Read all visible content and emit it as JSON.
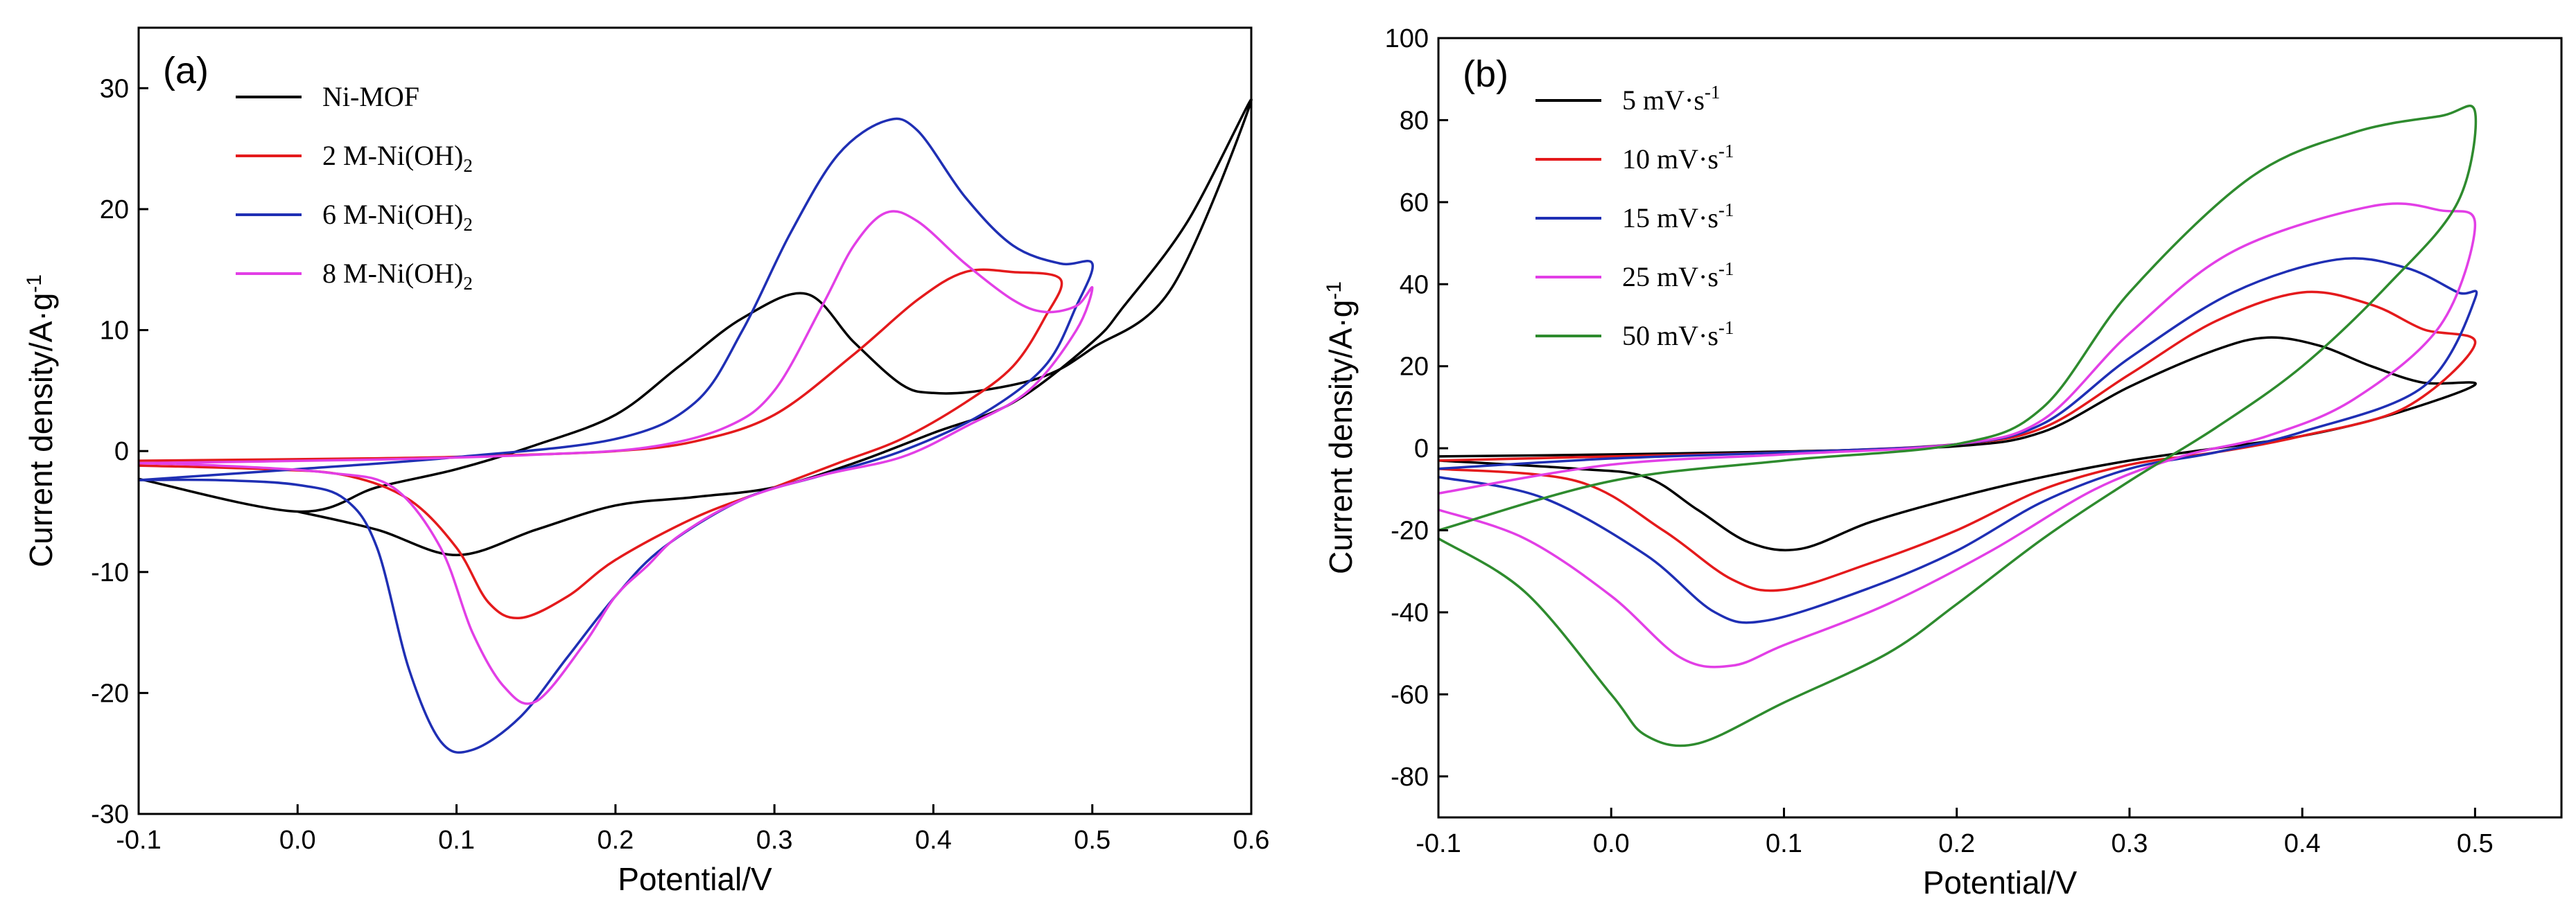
{
  "chart_data": [
    {
      "type": "line",
      "panel_label": "(a)",
      "xlabel": "Potential/V",
      "ylabel": "Current density/A·g",
      "ylabel_superscript": "-1",
      "xlim": [
        -0.1,
        0.6
      ],
      "ylim": [
        -30,
        35
      ],
      "xticks": [
        -0.1,
        0.0,
        0.1,
        0.2,
        0.3,
        0.4,
        0.5,
        0.6
      ],
      "xtick_labels": [
        "-0.1",
        "0.0",
        "0.1",
        "0.2",
        "0.3",
        "0.4",
        "0.5",
        "0.6"
      ],
      "yticks": [
        -30,
        -20,
        -10,
        0,
        10,
        20,
        30
      ],
      "ytick_labels": [
        "-30",
        "-20",
        "-10",
        "0",
        "10",
        "20",
        "30"
      ],
      "legend_position": "top-left",
      "series": [
        {
          "name": "Ni-MOF",
          "label_base": "Ni-MOF",
          "label_sup": "",
          "color": "#000000",
          "points": [
            [
              -0.1,
              -2.3
            ],
            [
              0.0,
              -5.0
            ],
            [
              0.05,
              -3.0
            ],
            [
              0.1,
              -1.5
            ],
            [
              0.15,
              0.5
            ],
            [
              0.2,
              3.0
            ],
            [
              0.24,
              7.0
            ],
            [
              0.28,
              11.0
            ],
            [
              0.32,
              13.0
            ],
            [
              0.35,
              9.0
            ],
            [
              0.38,
              5.5
            ],
            [
              0.4,
              4.8
            ],
            [
              0.43,
              5.0
            ],
            [
              0.47,
              6.2
            ],
            [
              0.5,
              8.5
            ],
            [
              0.55,
              13.5
            ],
            [
              0.6,
              29.0
            ],
            [
              0.56,
              19.0
            ],
            [
              0.52,
              12.0
            ],
            [
              0.5,
              9.0
            ],
            [
              0.45,
              4.0
            ],
            [
              0.4,
              1.5
            ],
            [
              0.35,
              -1.0
            ],
            [
              0.3,
              -3.0
            ],
            [
              0.25,
              -3.8
            ],
            [
              0.2,
              -4.5
            ],
            [
              0.15,
              -6.5
            ],
            [
              0.1,
              -8.6
            ],
            [
              0.05,
              -6.5
            ],
            [
              0.0,
              -5.0
            ]
          ]
        },
        {
          "name": "2 M-Ni(OH)2",
          "label_base": "2 M-Ni(OH)",
          "label_sup": "2",
          "color": "#e41a1c",
          "points": [
            [
              -0.1,
              -0.8
            ],
            [
              0.05,
              -0.6
            ],
            [
              0.12,
              -0.4
            ],
            [
              0.2,
              0.0
            ],
            [
              0.25,
              0.8
            ],
            [
              0.3,
              3.0
            ],
            [
              0.35,
              8.0
            ],
            [
              0.39,
              12.5
            ],
            [
              0.42,
              14.8
            ],
            [
              0.45,
              14.8
            ],
            [
              0.48,
              14.2
            ],
            [
              0.47,
              11.0
            ],
            [
              0.45,
              7.0
            ],
            [
              0.42,
              4.0
            ],
            [
              0.38,
              1.0
            ],
            [
              0.34,
              -1.0
            ],
            [
              0.3,
              -3.0
            ],
            [
              0.25,
              -5.5
            ],
            [
              0.2,
              -9.0
            ],
            [
              0.17,
              -12.0
            ],
            [
              0.14,
              -13.8
            ],
            [
              0.12,
              -12.5
            ],
            [
              0.1,
              -8.0
            ],
            [
              0.07,
              -4.0
            ],
            [
              0.03,
              -2.0
            ],
            [
              -0.02,
              -1.5
            ],
            [
              -0.1,
              -1.2
            ]
          ]
        },
        {
          "name": "6 M-Ni(OH)2",
          "label_base": "6 M-Ni(OH)",
          "label_sup": "2",
          "color": "#1f2fb4",
          "points": [
            [
              -0.1,
              -2.4
            ],
            [
              0.0,
              -1.5
            ],
            [
              0.1,
              -0.5
            ],
            [
              0.2,
              1.0
            ],
            [
              0.25,
              4.0
            ],
            [
              0.28,
              10.0
            ],
            [
              0.31,
              18.0
            ],
            [
              0.34,
              24.5
            ],
            [
              0.37,
              27.3
            ],
            [
              0.39,
              26.5
            ],
            [
              0.42,
              21.0
            ],
            [
              0.45,
              17.0
            ],
            [
              0.48,
              15.5
            ],
            [
              0.5,
              15.5
            ],
            [
              0.49,
              12.0
            ],
            [
              0.47,
              7.0
            ],
            [
              0.43,
              3.0
            ],
            [
              0.38,
              0.0
            ],
            [
              0.33,
              -2.0
            ],
            [
              0.28,
              -4.0
            ],
            [
              0.23,
              -8.0
            ],
            [
              0.2,
              -12.0
            ],
            [
              0.17,
              -17.0
            ],
            [
              0.14,
              -22.0
            ],
            [
              0.11,
              -24.7
            ],
            [
              0.09,
              -24.0
            ],
            [
              0.07,
              -18.0
            ],
            [
              0.05,
              -8.0
            ],
            [
              0.03,
              -4.0
            ],
            [
              0.0,
              -2.8
            ],
            [
              -0.05,
              -2.4
            ],
            [
              -0.1,
              -2.4
            ]
          ]
        },
        {
          "name": "8 M-Ni(OH)2",
          "label_base": "8 M-Ni(OH)",
          "label_sup": "2",
          "color": "#e23fe6",
          "points": [
            [
              -0.1,
              -1.0
            ],
            [
              0.05,
              -0.7
            ],
            [
              0.15,
              -0.3
            ],
            [
              0.22,
              0.3
            ],
            [
              0.27,
              2.0
            ],
            [
              0.3,
              5.0
            ],
            [
              0.33,
              12.0
            ],
            [
              0.35,
              17.0
            ],
            [
              0.37,
              19.7
            ],
            [
              0.39,
              19.0
            ],
            [
              0.42,
              15.5
            ],
            [
              0.45,
              12.5
            ],
            [
              0.47,
              11.5
            ],
            [
              0.49,
              12.0
            ],
            [
              0.5,
              13.5
            ],
            [
              0.49,
              10.0
            ],
            [
              0.46,
              5.0
            ],
            [
              0.42,
              2.0
            ],
            [
              0.38,
              -0.5
            ],
            [
              0.33,
              -2.0
            ],
            [
              0.28,
              -4.0
            ],
            [
              0.24,
              -7.0
            ],
            [
              0.22,
              -9.5
            ],
            [
              0.2,
              -12.0
            ],
            [
              0.18,
              -16.0
            ],
            [
              0.15,
              -20.7
            ],
            [
              0.13,
              -19.5
            ],
            [
              0.11,
              -15.0
            ],
            [
              0.09,
              -8.0
            ],
            [
              0.06,
              -3.0
            ],
            [
              0.02,
              -1.8
            ],
            [
              -0.05,
              -1.2
            ],
            [
              -0.1,
              -1.0
            ]
          ]
        }
      ]
    },
    {
      "type": "line",
      "panel_label": "(b)",
      "xlabel": "Potential/V",
      "ylabel": "Current density/A·g",
      "ylabel_superscript": "-1",
      "xlim": [
        -0.1,
        0.55
      ],
      "ylim": [
        -90,
        100
      ],
      "xticks": [
        -0.1,
        0.0,
        0.1,
        0.2,
        0.3,
        0.4,
        0.5
      ],
      "xtick_labels": [
        "-0.1",
        "0.0",
        "0.1",
        "0.2",
        "0.3",
        "0.4",
        "0.5"
      ],
      "yticks": [
        -80,
        -60,
        -40,
        -20,
        0,
        20,
        40,
        60,
        80,
        100
      ],
      "ytick_labels": [
        "-80",
        "-60",
        "-40",
        "-20",
        "0",
        "20",
        "40",
        "60",
        "80",
        "100"
      ],
      "legend_position": "top-left",
      "series": [
        {
          "name": "5 mV·s-1",
          "label_base": "5 mV·s",
          "label_sup": "-1",
          "color": "#000000",
          "points": [
            [
              -0.1,
              -2.0
            ],
            [
              0.0,
              -1.5
            ],
            [
              0.1,
              -0.8
            ],
            [
              0.2,
              0.5
            ],
            [
              0.25,
              4.0
            ],
            [
              0.3,
              15.0
            ],
            [
              0.35,
              24.0
            ],
            [
              0.38,
              27.0
            ],
            [
              0.41,
              25.0
            ],
            [
              0.44,
              20.0
            ],
            [
              0.47,
              16.0
            ],
            [
              0.5,
              15.5
            ],
            [
              0.45,
              8.0
            ],
            [
              0.4,
              3.0
            ],
            [
              0.35,
              0.0
            ],
            [
              0.3,
              -3.0
            ],
            [
              0.25,
              -7.0
            ],
            [
              0.2,
              -12.0
            ],
            [
              0.15,
              -18.0
            ],
            [
              0.11,
              -24.5
            ],
            [
              0.08,
              -23.0
            ],
            [
              0.05,
              -15.0
            ],
            [
              0.02,
              -7.0
            ],
            [
              -0.02,
              -5.0
            ],
            [
              -0.1,
              -3.0
            ]
          ]
        },
        {
          "name": "10 mV·s-1",
          "label_base": "10 mV·s",
          "label_sup": "-1",
          "color": "#e41a1c",
          "points": [
            [
              -0.1,
              -3.0
            ],
            [
              0.0,
              -2.0
            ],
            [
              0.1,
              -1.0
            ],
            [
              0.2,
              1.0
            ],
            [
              0.25,
              5.0
            ],
            [
              0.3,
              18.0
            ],
            [
              0.35,
              31.0
            ],
            [
              0.4,
              38.0
            ],
            [
              0.44,
              35.0
            ],
            [
              0.47,
              29.0
            ],
            [
              0.5,
              25.5
            ],
            [
              0.46,
              10.0
            ],
            [
              0.4,
              3.0
            ],
            [
              0.35,
              -1.0
            ],
            [
              0.3,
              -4.0
            ],
            [
              0.25,
              -10.0
            ],
            [
              0.2,
              -20.0
            ],
            [
              0.15,
              -28.0
            ],
            [
              0.1,
              -34.5
            ],
            [
              0.07,
              -32.0
            ],
            [
              0.03,
              -20.0
            ],
            [
              -0.02,
              -8.0
            ],
            [
              -0.1,
              -5.0
            ]
          ]
        },
        {
          "name": "15 mV·s-1",
          "label_base": "15 mV·s",
          "label_sup": "-1",
          "color": "#1f2fb4",
          "points": [
            [
              -0.1,
              -5.0
            ],
            [
              0.0,
              -2.5
            ],
            [
              0.1,
              -1.0
            ],
            [
              0.2,
              1.0
            ],
            [
              0.25,
              6.0
            ],
            [
              0.3,
              22.0
            ],
            [
              0.36,
              38.0
            ],
            [
              0.42,
              46.0
            ],
            [
              0.46,
              44.0
            ],
            [
              0.49,
              38.0
            ],
            [
              0.5,
              36.5
            ],
            [
              0.47,
              15.0
            ],
            [
              0.4,
              4.0
            ],
            [
              0.35,
              -1.0
            ],
            [
              0.3,
              -5.0
            ],
            [
              0.25,
              -13.0
            ],
            [
              0.2,
              -25.0
            ],
            [
              0.15,
              -34.0
            ],
            [
              0.09,
              -42.0
            ],
            [
              0.06,
              -40.0
            ],
            [
              0.02,
              -26.0
            ],
            [
              -0.04,
              -12.0
            ],
            [
              -0.1,
              -7.0
            ]
          ]
        },
        {
          "name": "25 mV·s-1",
          "label_base": "25 mV·s",
          "label_sup": "-1",
          "color": "#e23fe6",
          "points": [
            [
              -0.1,
              -11.0
            ],
            [
              0.0,
              -4.0
            ],
            [
              0.1,
              -1.5
            ],
            [
              0.2,
              1.0
            ],
            [
              0.25,
              7.0
            ],
            [
              0.3,
              28.0
            ],
            [
              0.36,
              48.0
            ],
            [
              0.44,
              59.0
            ],
            [
              0.48,
              58.0
            ],
            [
              0.5,
              54.5
            ],
            [
              0.48,
              30.0
            ],
            [
              0.43,
              12.0
            ],
            [
              0.38,
              3.0
            ],
            [
              0.33,
              -2.0
            ],
            [
              0.28,
              -10.0
            ],
            [
              0.22,
              -25.0
            ],
            [
              0.16,
              -38.0
            ],
            [
              0.1,
              -48.0
            ],
            [
              0.07,
              -53.0
            ],
            [
              0.04,
              -51.0
            ],
            [
              0.0,
              -36.0
            ],
            [
              -0.05,
              -22.0
            ],
            [
              -0.1,
              -15.0
            ]
          ]
        },
        {
          "name": "50 mV·s-1",
          "label_base": "50 mV·s",
          "label_sup": "-1",
          "color": "#2e8b2e",
          "points": [
            [
              -0.1,
              -20.0
            ],
            [
              0.0,
              -8.0
            ],
            [
              0.1,
              -3.0
            ],
            [
              0.2,
              1.0
            ],
            [
              0.25,
              10.0
            ],
            [
              0.3,
              38.0
            ],
            [
              0.37,
              66.0
            ],
            [
              0.43,
              77.0
            ],
            [
              0.48,
              81.0
            ],
            [
              0.5,
              82.0
            ],
            [
              0.49,
              60.0
            ],
            [
              0.45,
              40.0
            ],
            [
              0.4,
              20.0
            ],
            [
              0.35,
              5.0
            ],
            [
              0.3,
              -8.0
            ],
            [
              0.25,
              -22.0
            ],
            [
              0.2,
              -38.0
            ],
            [
              0.16,
              -50.0
            ],
            [
              0.1,
              -62.0
            ],
            [
              0.05,
              -72.0
            ],
            [
              0.02,
              -70.0
            ],
            [
              0.0,
              -60.0
            ],
            [
              -0.05,
              -35.0
            ],
            [
              -0.1,
              -22.0
            ]
          ]
        }
      ]
    }
  ]
}
